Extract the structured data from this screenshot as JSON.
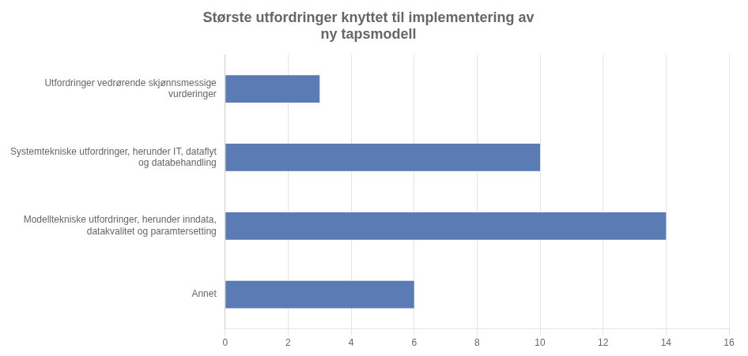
{
  "chart_data": {
    "type": "bar",
    "orientation": "horizontal",
    "title": "Største utfordringer knyttet til implementering av\nny tapsmodell",
    "categories": [
      "Utfordringer vedrørende skjønnsmessige\nvurderinger",
      "Systemtekniske utfordringer, herunder IT, dataflyt\nog databehandling",
      "Modelltekniske utfordringer, herunder inndata,\ndatakvalitet og paramtersetting",
      "Annet"
    ],
    "values": [
      3,
      10,
      14,
      6
    ],
    "color": "#5B7BB5",
    "xlim": [
      0,
      16
    ],
    "xticks": [
      0,
      2,
      4,
      6,
      8,
      10,
      12,
      14,
      16
    ],
    "grid": true
  }
}
